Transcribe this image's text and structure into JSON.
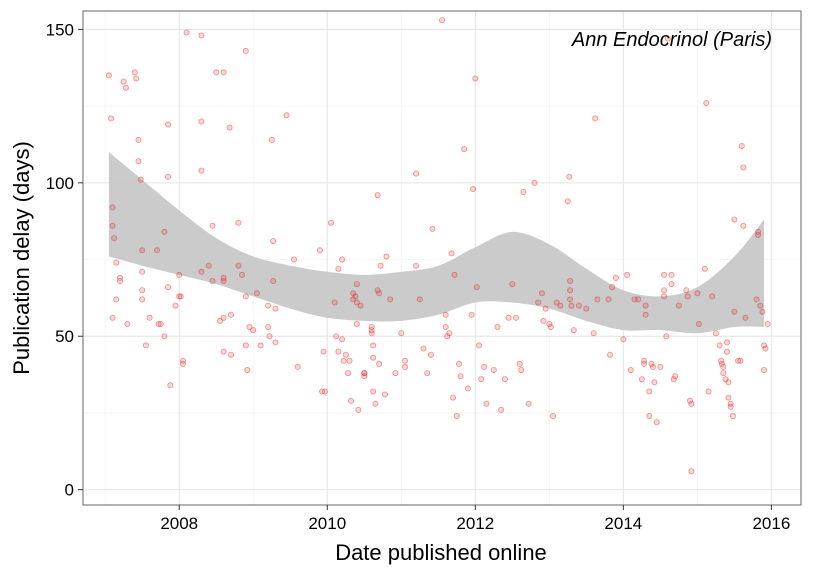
{
  "chart_data": {
    "type": "scatter",
    "title": "",
    "annotation": "Ann Endocrinol (Paris)",
    "xlabel": "Date published online",
    "ylabel": "Publication delay (days)",
    "xlim": [
      2006.7,
      2016.4
    ],
    "ylim": [
      -5,
      156
    ],
    "xticks": [
      2008,
      2010,
      2012,
      2014,
      2016
    ],
    "yticks": [
      0,
      50,
      100,
      150
    ],
    "grid": true,
    "legend": "none",
    "colors": {
      "points": "#e41a1c",
      "band": "#c8c8c8",
      "grid_major": "#e4e4e4",
      "grid_minor": "#f3f3f3",
      "border": "#7f7f7f"
    },
    "smooth_band": {
      "x": [
        2007.05,
        2007.5,
        2008.0,
        2008.5,
        2009.0,
        2009.5,
        2010.0,
        2010.5,
        2011.0,
        2011.5,
        2012.0,
        2012.5,
        2013.0,
        2013.5,
        2014.0,
        2014.5,
        2015.0,
        2015.5,
        2015.9
      ],
      "upper": [
        110,
        101,
        91,
        82,
        76,
        73,
        71,
        70,
        71,
        73,
        79,
        84,
        80,
        72,
        65,
        63,
        66,
        76,
        88
      ],
      "lower": [
        76,
        73,
        70,
        67,
        63,
        59,
        56,
        55,
        55,
        57,
        61,
        61,
        59,
        55,
        52,
        52,
        51,
        53,
        53
      ]
    },
    "points": [
      [
        2007.05,
        135
      ],
      [
        2007.08,
        121
      ],
      [
        2007.1,
        92
      ],
      [
        2007.1,
        86
      ],
      [
        2007.12,
        82
      ],
      [
        2007.15,
        74
      ],
      [
        2007.2,
        69
      ],
      [
        2007.2,
        68
      ],
      [
        2007.15,
        62
      ],
      [
        2007.1,
        56
      ],
      [
        2007.25,
        133
      ],
      [
        2007.28,
        131
      ],
      [
        2007.3,
        54
      ],
      [
        2007.4,
        136
      ],
      [
        2007.42,
        134
      ],
      [
        2007.45,
        114
      ],
      [
        2007.45,
        107
      ],
      [
        2007.48,
        101
      ],
      [
        2007.5,
        78
      ],
      [
        2007.5,
        71
      ],
      [
        2007.5,
        65
      ],
      [
        2007.5,
        62
      ],
      [
        2007.55,
        47
      ],
      [
        2007.6,
        56
      ],
      [
        2007.7,
        78
      ],
      [
        2007.72,
        54
      ],
      [
        2007.75,
        54
      ],
      [
        2007.8,
        50
      ],
      [
        2007.8,
        84
      ],
      [
        2007.85,
        119
      ],
      [
        2007.85,
        102
      ],
      [
        2007.85,
        66
      ],
      [
        2007.88,
        34
      ],
      [
        2007.95,
        60
      ],
      [
        2008.0,
        70
      ],
      [
        2008.0,
        63
      ],
      [
        2008.02,
        63
      ],
      [
        2008.05,
        42
      ],
      [
        2008.05,
        41
      ],
      [
        2008.1,
        149
      ],
      [
        2008.3,
        148
      ],
      [
        2008.3,
        104
      ],
      [
        2008.3,
        120
      ],
      [
        2008.3,
        71
      ],
      [
        2008.4,
        73
      ],
      [
        2008.45,
        86
      ],
      [
        2008.45,
        68
      ],
      [
        2008.5,
        136
      ],
      [
        2008.55,
        55
      ],
      [
        2008.6,
        136
      ],
      [
        2008.6,
        69
      ],
      [
        2008.6,
        68
      ],
      [
        2008.6,
        56
      ],
      [
        2008.6,
        45
      ],
      [
        2008.68,
        118
      ],
      [
        2008.7,
        57
      ],
      [
        2008.7,
        44
      ],
      [
        2008.8,
        87
      ],
      [
        2008.8,
        73
      ],
      [
        2008.85,
        70
      ],
      [
        2008.9,
        143
      ],
      [
        2008.9,
        63
      ],
      [
        2008.9,
        47
      ],
      [
        2008.92,
        39
      ],
      [
        2008.95,
        53
      ],
      [
        2009.0,
        52
      ],
      [
        2009.05,
        64
      ],
      [
        2009.1,
        47
      ],
      [
        2009.2,
        60
      ],
      [
        2009.2,
        53
      ],
      [
        2009.22,
        50
      ],
      [
        2009.25,
        114
      ],
      [
        2009.27,
        81
      ],
      [
        2009.27,
        68
      ],
      [
        2009.3,
        59
      ],
      [
        2009.3,
        48
      ],
      [
        2009.45,
        122
      ],
      [
        2009.55,
        75
      ],
      [
        2009.6,
        40
      ],
      [
        2009.9,
        78
      ],
      [
        2009.93,
        32
      ],
      [
        2009.95,
        45
      ],
      [
        2009.97,
        32
      ],
      [
        2010.05,
        87
      ],
      [
        2010.1,
        61
      ],
      [
        2010.12,
        50
      ],
      [
        2010.15,
        72
      ],
      [
        2010.15,
        45
      ],
      [
        2010.2,
        75
      ],
      [
        2010.2,
        49
      ],
      [
        2010.22,
        42
      ],
      [
        2010.25,
        44
      ],
      [
        2010.28,
        38
      ],
      [
        2010.3,
        42
      ],
      [
        2010.32,
        29
      ],
      [
        2010.35,
        64
      ],
      [
        2010.35,
        62
      ],
      [
        2010.38,
        63
      ],
      [
        2010.4,
        67
      ],
      [
        2010.4,
        61
      ],
      [
        2010.4,
        54
      ],
      [
        2010.42,
        26
      ],
      [
        2010.45,
        60
      ],
      [
        2010.5,
        38
      ],
      [
        2010.5,
        38
      ],
      [
        2010.5,
        37
      ],
      [
        2010.6,
        53
      ],
      [
        2010.6,
        52
      ],
      [
        2010.6,
        51
      ],
      [
        2010.62,
        47
      ],
      [
        2010.62,
        43
      ],
      [
        2010.62,
        32
      ],
      [
        2010.65,
        28
      ],
      [
        2010.68,
        96
      ],
      [
        2010.68,
        65
      ],
      [
        2010.7,
        64
      ],
      [
        2010.7,
        41
      ],
      [
        2010.72,
        73
      ],
      [
        2010.78,
        31
      ],
      [
        2010.8,
        76
      ],
      [
        2010.85,
        62
      ],
      [
        2010.92,
        38
      ],
      [
        2011.0,
        51
      ],
      [
        2011.05,
        42
      ],
      [
        2011.05,
        40
      ],
      [
        2011.2,
        103
      ],
      [
        2011.2,
        73
      ],
      [
        2011.25,
        62
      ],
      [
        2011.3,
        46
      ],
      [
        2011.35,
        38
      ],
      [
        2011.4,
        44
      ],
      [
        2011.42,
        85
      ],
      [
        2011.55,
        153
      ],
      [
        2011.6,
        57
      ],
      [
        2011.6,
        53
      ],
      [
        2011.62,
        50
      ],
      [
        2011.65,
        51
      ],
      [
        2011.68,
        77
      ],
      [
        2011.7,
        30
      ],
      [
        2011.72,
        70
      ],
      [
        2011.75,
        24
      ],
      [
        2011.78,
        41
      ],
      [
        2011.8,
        37
      ],
      [
        2011.85,
        111
      ],
      [
        2011.9,
        33
      ],
      [
        2011.95,
        57
      ],
      [
        2011.97,
        98
      ],
      [
        2012.0,
        134
      ],
      [
        2012.02,
        66
      ],
      [
        2012.05,
        47
      ],
      [
        2012.08,
        36
      ],
      [
        2012.12,
        40
      ],
      [
        2012.15,
        28
      ],
      [
        2012.25,
        39
      ],
      [
        2012.3,
        53
      ],
      [
        2012.35,
        26
      ],
      [
        2012.4,
        36
      ],
      [
        2012.45,
        56
      ],
      [
        2012.5,
        67
      ],
      [
        2012.55,
        56
      ],
      [
        2012.6,
        41
      ],
      [
        2012.62,
        39
      ],
      [
        2012.65,
        97
      ],
      [
        2012.72,
        28
      ],
      [
        2012.8,
        100
      ],
      [
        2012.85,
        61
      ],
      [
        2012.9,
        64
      ],
      [
        2012.92,
        55
      ],
      [
        2012.95,
        59
      ],
      [
        2013.0,
        54
      ],
      [
        2013.02,
        53
      ],
      [
        2013.05,
        24
      ],
      [
        2013.1,
        61
      ],
      [
        2013.15,
        60
      ],
      [
        2013.25,
        94
      ],
      [
        2013.27,
        102
      ],
      [
        2013.28,
        68
      ],
      [
        2013.28,
        65
      ],
      [
        2013.28,
        62
      ],
      [
        2013.3,
        60
      ],
      [
        2013.33,
        52
      ],
      [
        2013.4,
        60
      ],
      [
        2013.5,
        59
      ],
      [
        2013.6,
        51
      ],
      [
        2013.62,
        121
      ],
      [
        2013.65,
        62
      ],
      [
        2013.8,
        62
      ],
      [
        2013.82,
        44
      ],
      [
        2013.85,
        66
      ],
      [
        2013.9,
        69
      ],
      [
        2014.0,
        49
      ],
      [
        2014.05,
        70
      ],
      [
        2014.1,
        39
      ],
      [
        2014.15,
        62
      ],
      [
        2014.2,
        62
      ],
      [
        2014.25,
        36
      ],
      [
        2014.28,
        42
      ],
      [
        2014.28,
        41
      ],
      [
        2014.3,
        60
      ],
      [
        2014.3,
        57
      ],
      [
        2014.35,
        32
      ],
      [
        2014.35,
        24
      ],
      [
        2014.38,
        41
      ],
      [
        2014.4,
        40
      ],
      [
        2014.42,
        35
      ],
      [
        2014.45,
        22
      ],
      [
        2014.5,
        40
      ],
      [
        2014.55,
        70
      ],
      [
        2014.55,
        65
      ],
      [
        2014.55,
        63
      ],
      [
        2014.58,
        50
      ],
      [
        2014.6,
        147
      ],
      [
        2014.65,
        70
      ],
      [
        2014.65,
        67
      ],
      [
        2014.68,
        36
      ],
      [
        2014.7,
        37
      ],
      [
        2014.75,
        60
      ],
      [
        2014.85,
        65
      ],
      [
        2014.87,
        63
      ],
      [
        2014.9,
        29
      ],
      [
        2014.92,
        6
      ],
      [
        2014.92,
        28
      ],
      [
        2015.0,
        64
      ],
      [
        2015.02,
        54
      ],
      [
        2015.1,
        72
      ],
      [
        2015.12,
        126
      ],
      [
        2015.15,
        32
      ],
      [
        2015.2,
        63
      ],
      [
        2015.25,
        51
      ],
      [
        2015.3,
        47
      ],
      [
        2015.32,
        42
      ],
      [
        2015.33,
        41
      ],
      [
        2015.35,
        40
      ],
      [
        2015.35,
        38
      ],
      [
        2015.38,
        36
      ],
      [
        2015.4,
        48
      ],
      [
        2015.4,
        45
      ],
      [
        2015.42,
        35
      ],
      [
        2015.42,
        30
      ],
      [
        2015.45,
        28
      ],
      [
        2015.45,
        27
      ],
      [
        2015.48,
        24
      ],
      [
        2015.5,
        88
      ],
      [
        2015.5,
        58
      ],
      [
        2015.55,
        42
      ],
      [
        2015.58,
        42
      ],
      [
        2015.6,
        112
      ],
      [
        2015.62,
        105
      ],
      [
        2015.62,
        86
      ],
      [
        2015.65,
        56
      ],
      [
        2015.8,
        62
      ],
      [
        2015.82,
        84
      ],
      [
        2015.82,
        83
      ],
      [
        2015.85,
        60
      ],
      [
        2015.88,
        58
      ],
      [
        2015.9,
        47
      ],
      [
        2015.9,
        39
      ],
      [
        2015.92,
        46
      ],
      [
        2015.95,
        54
      ]
    ]
  }
}
